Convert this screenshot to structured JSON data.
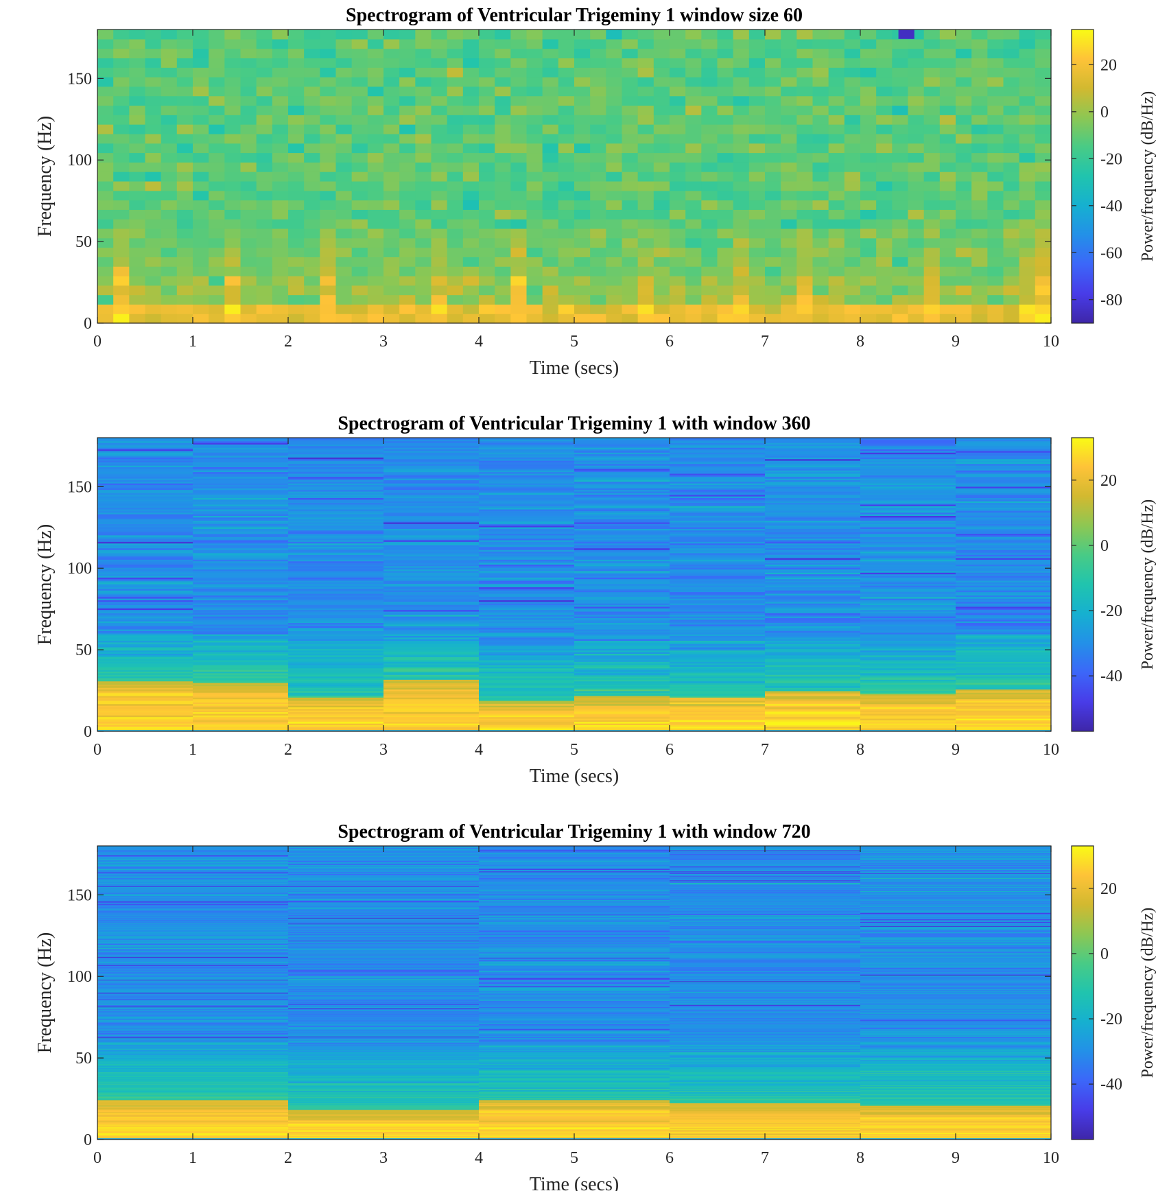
{
  "chart_data": [
    {
      "type": "heatmap",
      "title": "Spectrogram of Ventricular Trigeminy 1 window size 60",
      "xlabel": "Time (secs)",
      "ylabel": "Frequency (Hz)",
      "colorbar_label": "Power/frequency (dB/Hz)",
      "colormap": "parula",
      "xlim": [
        0,
        10
      ],
      "ylim": [
        0,
        180
      ],
      "xticks": [
        "0",
        "1",
        "2",
        "3",
        "4",
        "5",
        "6",
        "7",
        "8",
        "9",
        "10"
      ],
      "yticks": [
        "0",
        "50",
        "100",
        "150"
      ],
      "clim": [
        -90,
        35
      ],
      "cbticks": [
        "20",
        "0",
        "-20",
        "-40",
        "-60",
        "-80"
      ],
      "time_bins": 60,
      "freq_bins": 31,
      "beat_times": [
        0.25,
        1.4,
        2.4,
        3.6,
        4.4,
        5.7,
        6.7,
        7.4,
        8.7,
        9.85
      ],
      "low_freq_level_db": 18,
      "noise_floor_db": -12
    },
    {
      "type": "heatmap",
      "title": "Spectrogram of Ventricular Trigeminy 1 with window 360",
      "xlabel": "Time (secs)",
      "ylabel": "Frequency (Hz)",
      "colorbar_label": "Power/frequency (dB/Hz)",
      "colormap": "parula",
      "xlim": [
        0,
        10
      ],
      "ylim": [
        0,
        180
      ],
      "xticks": [
        "0",
        "1",
        "2",
        "3",
        "4",
        "5",
        "6",
        "7",
        "8",
        "9",
        "10"
      ],
      "yticks": [
        "0",
        "50",
        "100",
        "150"
      ],
      "clim": [
        -57,
        33
      ],
      "cbticks": [
        "20",
        "0",
        "-20",
        "-40"
      ],
      "time_bins": 10,
      "freq_bins": 181,
      "low_freq_level_db": 22,
      "noise_floor_db": -30
    },
    {
      "type": "heatmap",
      "title": "Spectrogram of Ventricular Trigeminy 1 with window 720",
      "xlabel": "Time (secs)",
      "ylabel": "Frequency (Hz)",
      "colorbar_label": "Power/frequency (dB/Hz)",
      "colormap": "parula",
      "xlim": [
        0,
        10
      ],
      "ylim": [
        0,
        180
      ],
      "xticks": [
        "0",
        "1",
        "2",
        "3",
        "4",
        "5",
        "6",
        "7",
        "8",
        "9",
        "10"
      ],
      "yticks": [
        "0",
        "50",
        "100",
        "150"
      ],
      "clim": [
        -57,
        33
      ],
      "cbticks": [
        "20",
        "0",
        "-20",
        "-40"
      ],
      "time_bins": 5,
      "freq_bins": 361,
      "low_freq_level_db": 22,
      "noise_floor_db": -30
    }
  ]
}
